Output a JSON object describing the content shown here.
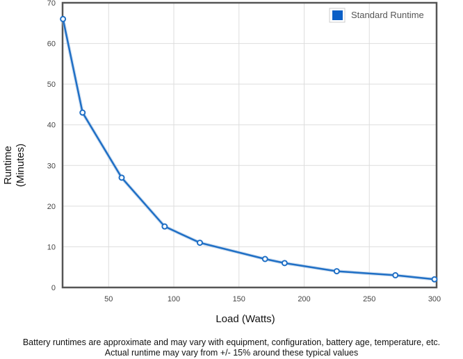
{
  "chart_data": {
    "type": "line",
    "title": "",
    "xlabel": "Load (Watts)",
    "ylabel_lines": [
      "Runtime",
      "(Minutes)"
    ],
    "xlim": [
      15,
      300
    ],
    "ylim": [
      0,
      70
    ],
    "xticks": [
      50,
      100,
      150,
      200,
      250,
      300
    ],
    "yticks": [
      0,
      10,
      20,
      30,
      40,
      50,
      60,
      70
    ],
    "grid": true,
    "legend": "top-right",
    "series": [
      {
        "name": "Standard Runtime",
        "color": "#1f6fc5",
        "x": [
          15,
          30,
          60,
          93,
          120,
          170,
          185,
          225,
          270,
          300
        ],
        "y": [
          66,
          43,
          27,
          15,
          11,
          7,
          6,
          4,
          3,
          2
        ]
      }
    ]
  },
  "notes": [
    "Battery runtimes are approximate and may vary with equipment, configuration, battery age, temperature, etc.",
    "Actual runtime may vary from +/- 15% around these typical values"
  ]
}
